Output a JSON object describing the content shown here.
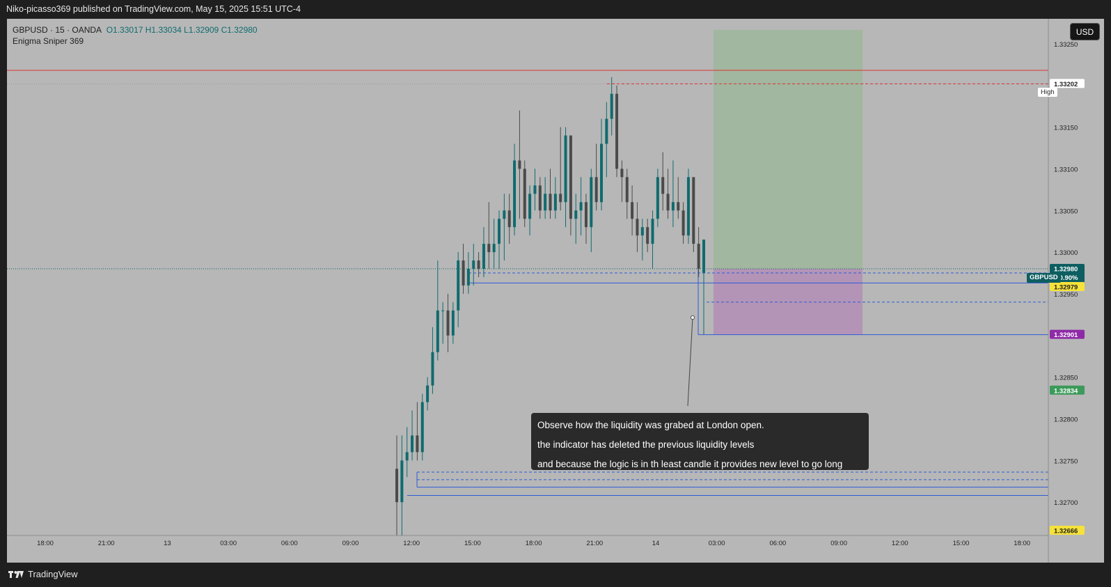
{
  "header": {
    "publish_line": "Niko-picasso369 published on TradingView.com, May 15, 2025 15:51 UTC-4"
  },
  "legend": {
    "symbol_line": "GBPUSD · 15 · OANDA",
    "open": "O1.33017",
    "high": "H1.33034",
    "low": "L1.32909",
    "close": "C1.32980",
    "indicator": "Enigma Sniper 369"
  },
  "currency_button": "USD",
  "annotation": {
    "lines": [
      "Observe how the liquidity was grabed at London open.",
      "the indicator has deleted the previous liquidity levels",
      "and because the logic is in th least candle it provides new level to go long"
    ]
  },
  "footer": {
    "brand": "TradingView"
  },
  "tags": {
    "high": "High",
    "symbol": "GBPUSD",
    "change": "+0.90%"
  },
  "colors": {
    "bull": "#0f6b6e",
    "bear": "#4a4a4a",
    "profit_zone": "#9fb79c",
    "loss_zone": "#b290b7",
    "level_line": "#2d5bd6",
    "red_line": "#e03030"
  },
  "chart_data": {
    "type": "candlestick",
    "symbol": "GBPUSD",
    "interval": "15",
    "ylim": [
      1.3266,
      1.3328
    ],
    "y_ticks": [
      1.3325,
      1.332,
      1.3315,
      1.331,
      1.3305,
      1.33,
      1.3295,
      1.3285,
      1.328,
      1.3275,
      1.327
    ],
    "x_tick_labels": [
      "18:00",
      "21:00",
      "13",
      "03:00",
      "06:00",
      "09:00",
      "12:00",
      "15:00",
      "18:00",
      "21:00",
      "14",
      "03:00",
      "06:00",
      "09:00",
      "12:00",
      "15:00",
      "18:00"
    ],
    "price_labels": [
      {
        "value": "1.33202",
        "style": "high"
      },
      {
        "value": "1.32980",
        "style": "last"
      },
      {
        "value": "1.32979",
        "style": "yellow"
      },
      {
        "value": "1.32901",
        "style": "purple"
      },
      {
        "value": "1.32834",
        "style": "green"
      },
      {
        "value": "1.32666",
        "style": "yellow"
      }
    ],
    "candles": [
      [
        1.3274,
        1.3278,
        1.3266,
        1.327
      ],
      [
        1.327,
        1.3278,
        1.3266,
        1.3275
      ],
      [
        1.3275,
        1.3279,
        1.3273,
        1.3276
      ],
      [
        1.3276,
        1.3281,
        1.3275,
        1.3278
      ],
      [
        1.3278,
        1.3282,
        1.3275,
        1.3276
      ],
      [
        1.3276,
        1.3283,
        1.3275,
        1.3282
      ],
      [
        1.3282,
        1.3285,
        1.3281,
        1.3284
      ],
      [
        1.3284,
        1.3291,
        1.3283,
        1.3288
      ],
      [
        1.3288,
        1.3299,
        1.3287,
        1.3293
      ],
      [
        1.3293,
        1.3294,
        1.3289,
        1.3293
      ],
      [
        1.3293,
        1.3295,
        1.3288,
        1.329
      ],
      [
        1.329,
        1.3294,
        1.3289,
        1.3293
      ],
      [
        1.3293,
        1.33,
        1.3291,
        1.3299
      ],
      [
        1.3299,
        1.3301,
        1.3295,
        1.3296
      ],
      [
        1.3296,
        1.33,
        1.3295,
        1.3298
      ],
      [
        1.3298,
        1.3301,
        1.3296,
        1.3299
      ],
      [
        1.3299,
        1.33,
        1.3297,
        1.3298
      ],
      [
        1.3298,
        1.3303,
        1.3297,
        1.3301
      ],
      [
        1.3301,
        1.3306,
        1.3298,
        1.33
      ],
      [
        1.33,
        1.3304,
        1.3298,
        1.3301
      ],
      [
        1.3301,
        1.3305,
        1.3298,
        1.3304
      ],
      [
        1.3304,
        1.3307,
        1.3299,
        1.3305
      ],
      [
        1.3305,
        1.3307,
        1.3301,
        1.3303
      ],
      [
        1.3303,
        1.3313,
        1.3302,
        1.3311
      ],
      [
        1.3311,
        1.3317,
        1.3304,
        1.331
      ],
      [
        1.331,
        1.3311,
        1.3303,
        1.3304
      ],
      [
        1.3304,
        1.3308,
        1.3302,
        1.3307
      ],
      [
        1.3307,
        1.331,
        1.3305,
        1.3308
      ],
      [
        1.3308,
        1.3309,
        1.3304,
        1.3305
      ],
      [
        1.3305,
        1.3309,
        1.3304,
        1.3307
      ],
      [
        1.3307,
        1.331,
        1.3304,
        1.3305
      ],
      [
        1.3305,
        1.3309,
        1.3304,
        1.3307
      ],
      [
        1.3307,
        1.3315,
        1.3305,
        1.3306
      ],
      [
        1.3306,
        1.3315,
        1.3303,
        1.3314
      ],
      [
        1.3314,
        1.3314,
        1.3302,
        1.3304
      ],
      [
        1.3304,
        1.3307,
        1.3301,
        1.3305
      ],
      [
        1.3305,
        1.3309,
        1.3302,
        1.3306
      ],
      [
        1.3306,
        1.3307,
        1.3301,
        1.3303
      ],
      [
        1.3303,
        1.331,
        1.33,
        1.3309
      ],
      [
        1.3309,
        1.3313,
        1.3305,
        1.3306
      ],
      [
        1.3306,
        1.3316,
        1.3305,
        1.3313
      ],
      [
        1.3313,
        1.3318,
        1.3309,
        1.3316
      ],
      [
        1.3316,
        1.3321,
        1.3314,
        1.3319
      ],
      [
        1.3319,
        1.332,
        1.3309,
        1.331
      ],
      [
        1.331,
        1.3311,
        1.3306,
        1.3309
      ],
      [
        1.3309,
        1.331,
        1.3304,
        1.3306
      ],
      [
        1.3306,
        1.3308,
        1.3302,
        1.3304
      ],
      [
        1.3304,
        1.3306,
        1.33,
        1.3302
      ],
      [
        1.3302,
        1.3304,
        1.3299,
        1.3303
      ],
      [
        1.3303,
        1.3304,
        1.33,
        1.3301
      ],
      [
        1.3301,
        1.3305,
        1.3298,
        1.3304
      ],
      [
        1.3304,
        1.331,
        1.3303,
        1.3309
      ],
      [
        1.3309,
        1.3312,
        1.3305,
        1.3307
      ],
      [
        1.3307,
        1.331,
        1.3304,
        1.3305
      ],
      [
        1.3305,
        1.3311,
        1.3303,
        1.3306
      ],
      [
        1.3306,
        1.3309,
        1.3304,
        1.3305
      ],
      [
        1.3305,
        1.3306,
        1.3301,
        1.3302
      ],
      [
        1.3302,
        1.331,
        1.3301,
        1.3309
      ],
      [
        1.3309,
        1.3309,
        1.33,
        1.3301
      ],
      [
        1.3301,
        1.3303,
        1.3297,
        1.3298
      ]
    ]
  }
}
